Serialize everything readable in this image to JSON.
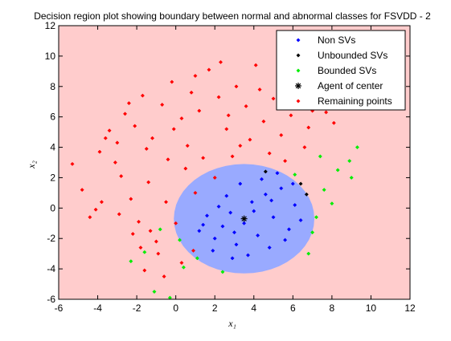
{
  "chart_data": {
    "type": "scatter",
    "title": "Decision region plot showing boundary between normal and abnormal classes for FSVDD - 2",
    "xlabel": "x₁",
    "ylabel": "x₂",
    "xlim": [
      -6,
      12
    ],
    "ylim": [
      -6,
      12
    ],
    "xticks": [
      "-6",
      "-4",
      "-2",
      "0",
      "2",
      "4",
      "6",
      "8",
      "10",
      "12"
    ],
    "yticks": [
      "-6",
      "-4",
      "-2",
      "0",
      "2",
      "4",
      "6",
      "8",
      "10",
      "12"
    ],
    "grid": false,
    "legend_position": "top-right",
    "background_color": "#ffcccc",
    "region": {
      "shape": "circle",
      "center": [
        3.5,
        -0.7
      ],
      "radius": 3.6,
      "color": "#99aaff"
    },
    "series": [
      {
        "name": "Non SVs",
        "marker": "diamond",
        "color": "#0000ff",
        "points": [
          [
            1.2,
            -1.5
          ],
          [
            1.6,
            -0.5
          ],
          [
            2.0,
            -2.0
          ],
          [
            2.4,
            -1.2
          ],
          [
            2.8,
            -0.3
          ],
          [
            3.1,
            -2.4
          ],
          [
            3.5,
            -1.0
          ],
          [
            3.9,
            0.4
          ],
          [
            4.2,
            -1.8
          ],
          [
            4.6,
            0.9
          ],
          [
            5.0,
            -0.6
          ],
          [
            5.4,
            1.3
          ],
          [
            5.8,
            -1.4
          ],
          [
            6.1,
            0.2
          ],
          [
            4.4,
            1.9
          ],
          [
            3.3,
            1.6
          ],
          [
            2.6,
            0.8
          ],
          [
            1.9,
            -2.8
          ],
          [
            4.8,
            -2.6
          ],
          [
            5.6,
            -2.1
          ],
          [
            3.7,
            -3.1
          ],
          [
            2.2,
            0.1
          ],
          [
            6.4,
            -0.8
          ],
          [
            5.2,
            2.3
          ],
          [
            3.0,
            -1.6
          ],
          [
            4.0,
            -0.2
          ],
          [
            4.9,
            0.5
          ],
          [
            1.4,
            -1.1
          ],
          [
            2.9,
            -3.3
          ],
          [
            6.0,
            1.6
          ]
        ]
      },
      {
        "name": "Unbounded SVs",
        "marker": "diamond",
        "color": "#000000",
        "points": [
          [
            4.6,
            2.4
          ],
          [
            6.7,
            0.9
          ],
          [
            6.4,
            1.6
          ]
        ]
      },
      {
        "name": "Bounded SVs",
        "marker": "diamond",
        "color": "#00ee00",
        "points": [
          [
            -2.3,
            -3.5
          ],
          [
            -1.6,
            -2.9
          ],
          [
            -1.1,
            -5.5
          ],
          [
            -0.3,
            -5.9
          ],
          [
            0.4,
            -3.9
          ],
          [
            1.1,
            -3.3
          ],
          [
            2.4,
            -4.2
          ],
          [
            0.2,
            -2.1
          ],
          [
            -0.8,
            -1.4
          ],
          [
            7.2,
            -0.6
          ],
          [
            7.6,
            1.2
          ],
          [
            8.3,
            2.5
          ],
          [
            8.9,
            3.1
          ],
          [
            9.3,
            4.0
          ],
          [
            7.4,
            3.4
          ],
          [
            6.1,
            2.2
          ],
          [
            7.0,
            -1.6
          ],
          [
            8.0,
            0.3
          ],
          [
            6.8,
            -3.0
          ],
          [
            9.0,
            2.0
          ]
        ]
      },
      {
        "name": "Agent of center",
        "marker": "asterisk",
        "color": "#000000",
        "points": [
          [
            3.5,
            -0.7
          ]
        ]
      },
      {
        "name": "Remaining points",
        "marker": "diamond",
        "color": "#ff0000",
        "points": [
          [
            -5.3,
            2.9
          ],
          [
            -4.8,
            1.2
          ],
          [
            -4.4,
            -0.6
          ],
          [
            -3.9,
            3.7
          ],
          [
            -3.4,
            5.1
          ],
          [
            -3.0,
            4.3
          ],
          [
            -2.6,
            6.2
          ],
          [
            -2.1,
            5.4
          ],
          [
            -1.7,
            7.4
          ],
          [
            -1.2,
            4.6
          ],
          [
            -0.7,
            6.8
          ],
          [
            -0.2,
            8.3
          ],
          [
            0.3,
            5.9
          ],
          [
            0.8,
            7.6
          ],
          [
            1.2,
            6.4
          ],
          [
            1.7,
            9.1
          ],
          [
            2.2,
            7.3
          ],
          [
            2.6,
            5.2
          ],
          [
            3.1,
            8.0
          ],
          [
            3.6,
            6.7
          ],
          [
            4.1,
            9.4
          ],
          [
            4.5,
            5.7
          ],
          [
            5.0,
            7.2
          ],
          [
            5.4,
            4.8
          ],
          [
            5.9,
            6.1
          ],
          [
            6.3,
            8.6
          ],
          [
            6.8,
            5.3
          ],
          [
            7.2,
            7.0
          ],
          [
            7.7,
            6.3
          ],
          [
            8.1,
            5.6
          ],
          [
            -2.8,
            2.1
          ],
          [
            -2.3,
            0.6
          ],
          [
            -1.9,
            -0.9
          ],
          [
            -1.4,
            1.7
          ],
          [
            -1.0,
            -2.2
          ],
          [
            -0.5,
            0.4
          ],
          [
            0.0,
            -1.0
          ],
          [
            0.5,
            2.6
          ],
          [
            1.0,
            1.0
          ],
          [
            -0.9,
            -3.0
          ],
          [
            -1.8,
            -2.6
          ],
          [
            -2.2,
            -1.7
          ],
          [
            -0.4,
            3.2
          ],
          [
            0.6,
            4.1
          ],
          [
            1.4,
            3.3
          ],
          [
            2.0,
            2.0
          ],
          [
            2.9,
            3.4
          ],
          [
            3.8,
            4.5
          ],
          [
            4.8,
            3.6
          ],
          [
            5.6,
            3.1
          ],
          [
            6.6,
            4.0
          ],
          [
            7.0,
            6.4
          ],
          [
            -3.6,
            4.6
          ],
          [
            -2.4,
            6.9
          ],
          [
            -1.5,
            3.9
          ],
          [
            -0.1,
            5.2
          ],
          [
            1.0,
            8.7
          ],
          [
            2.3,
            9.6
          ],
          [
            3.3,
            4.1
          ],
          [
            4.3,
            7.8
          ],
          [
            -3.8,
            0.4
          ],
          [
            -2.9,
            -0.4
          ],
          [
            -1.3,
            -1.5
          ],
          [
            0.9,
            -2.8
          ],
          [
            -0.6,
            -4.5
          ],
          [
            0.3,
            -3.6
          ],
          [
            -1.6,
            -4.1
          ],
          [
            -4.1,
            -0.1
          ],
          [
            -3.1,
            3.0
          ],
          [
            2.7,
            6.1
          ]
        ]
      }
    ]
  }
}
